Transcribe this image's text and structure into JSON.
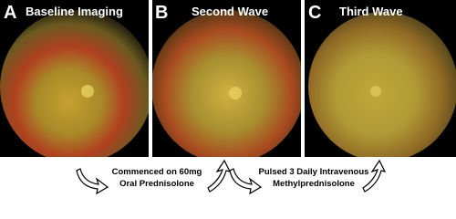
{
  "panels": [
    {
      "letter": "A",
      "title": "Baseline Imaging"
    },
    {
      "letter": "B",
      "title": "Second Wave"
    },
    {
      "letter": "C",
      "title": "Third Wave"
    }
  ],
  "transitions": [
    {
      "line1": "Commenced on 60mg",
      "line2": "Oral Prednisolone"
    },
    {
      "line1": "Pulsed 3 Daily Intravenous",
      "line2": "Methylprednisolone"
    }
  ]
}
